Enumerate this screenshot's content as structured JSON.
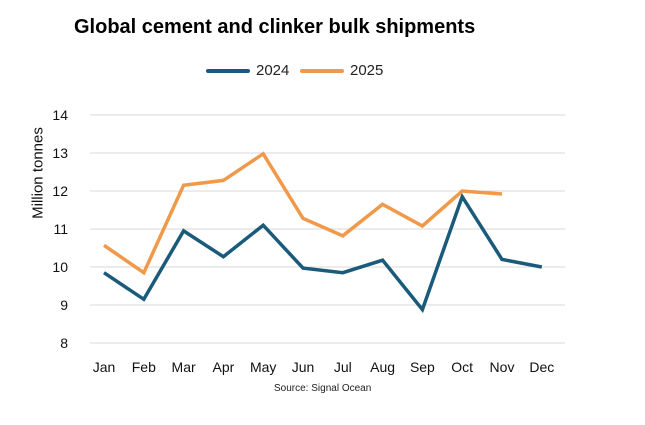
{
  "chart_data": {
    "type": "line",
    "title": "Global cement and clinker bulk shipments",
    "xlabel": "",
    "ylabel": "Million tonnes",
    "ylim": [
      8,
      14
    ],
    "yticks": [
      8,
      9,
      10,
      11,
      12,
      13,
      14
    ],
    "grid": true,
    "legend_position": "top",
    "categories": [
      "Jan",
      "Feb",
      "Mar",
      "Apr",
      "May",
      "Jun",
      "Jul",
      "Aug",
      "Sep",
      "Oct",
      "Nov",
      "Dec"
    ],
    "series": [
      {
        "name": "2024",
        "color": "#1a5a7a",
        "values": [
          9.85,
          9.15,
          10.95,
          10.27,
          11.1,
          9.97,
          9.85,
          10.18,
          8.88,
          11.85,
          10.2,
          10.0
        ]
      },
      {
        "name": "2025",
        "color": "#f0994a",
        "values": [
          10.57,
          9.85,
          12.15,
          12.28,
          12.98,
          11.28,
          10.82,
          11.65,
          11.08,
          12.0,
          11.92,
          null
        ]
      }
    ],
    "source": "Source: Signal Ocean"
  }
}
